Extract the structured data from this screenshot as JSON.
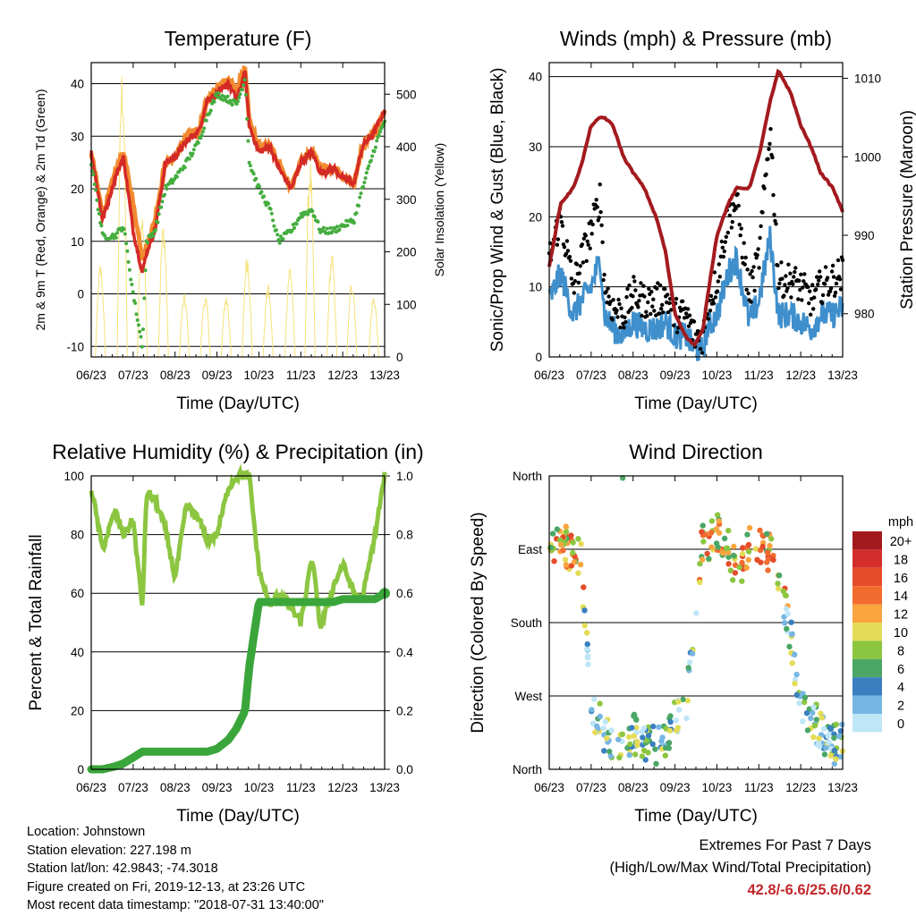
{
  "xticks": [
    "06/23",
    "07/23",
    "08/23",
    "09/23",
    "10/23",
    "11/23",
    "12/23",
    "13/23"
  ],
  "panels": {
    "temperature": {
      "title": "Temperature (F)",
      "xlabel": "Time (Day/UTC)",
      "ylabel_left": "2m & 9m T (Red, Orange) & 2m Td (Green)",
      "ylabel_right": "Solar Insolation (Yellow)",
      "yticks_left": [
        "-10",
        "0",
        "10",
        "20",
        "30",
        "40"
      ],
      "yticks_right": [
        "0",
        "100",
        "200",
        "300",
        "400",
        "500"
      ]
    },
    "winds": {
      "title": "Winds (mph) & Pressure (mb)",
      "xlabel": "Time (Day/UTC)",
      "ylabel_left": "Sonic/Prop Wind & Gust (Blue, Black)",
      "ylabel_right": "Station Pressure (Maroon)",
      "yticks_left": [
        "0",
        "10",
        "20",
        "30",
        "40"
      ],
      "yticks_right": [
        "980",
        "990",
        "1000",
        "1010"
      ]
    },
    "humidity": {
      "title": "Relative Humidity (%) & Precipitation (in)",
      "xlabel": "Time (Day/UTC)",
      "ylabel_left": "Percent & Total Rainfall",
      "yticks_left": [
        "0",
        "20",
        "40",
        "60",
        "80",
        "100"
      ],
      "yticks_right": [
        "0.0",
        "0.2",
        "0.4",
        "0.6",
        "0.8",
        "1.0"
      ]
    },
    "direction": {
      "title": "Wind Direction",
      "xlabel": "Time (Day/UTC)",
      "ylabel_left": "Direction (Colored By Speed)",
      "yticks_left": [
        "North",
        "East",
        "South",
        "West",
        "North"
      ],
      "legend_title": "mph",
      "legend_labels": [
        "20+",
        "18",
        "16",
        "14",
        "12",
        "10",
        "8",
        "6",
        "4",
        "2",
        "0"
      ],
      "legend_colors": [
        "#a31a1e",
        "#d32e2b",
        "#e54c2a",
        "#f26b2f",
        "#f9a43f",
        "#e4dc57",
        "#8cc641",
        "#4aa766",
        "#3a7fc0",
        "#77b6e3",
        "#bfe6f7"
      ]
    }
  },
  "info": {
    "location": "Location: Johnstown",
    "elevation": "Station elevation: 227.198 m",
    "latlon": "Station lat/lon: 42.9843; -74.3018",
    "created": "Figure created on Fri, 2019-12-13, at 23:26 UTC",
    "recent": "Most recent data timestamp: \"2018-07-31 13:40:00\""
  },
  "extremes": {
    "line1": "Extremes For Past 7 Days",
    "line2": "(High/Low/Max Wind/Total Precipitation)",
    "values": "42.8/-6.6/25.6/0.62"
  },
  "chart_data": [
    {
      "type": "line",
      "title": "Temperature (F)",
      "xlabel": "Time (Day/UTC)",
      "ylabel": "2m & 9m T (Red, Orange) & 2m Td (Green)",
      "y2label": "Solar Insolation (Yellow)",
      "ylim": [
        -12,
        44
      ],
      "y2lim": [
        0,
        560
      ],
      "x": [
        6.23,
        6.5,
        6.8,
        7.0,
        7.23,
        7.45,
        7.55,
        7.75,
        8.0,
        8.23,
        8.5,
        8.8,
        9.0,
        9.23,
        9.5,
        9.7,
        9.9,
        10.0,
        10.23,
        10.5,
        10.7,
        11.0,
        11.23,
        11.5,
        11.7,
        12.0,
        12.23,
        12.5,
        12.7,
        13.0,
        13.23
      ],
      "series": [
        {
          "name": "2m T (Red)",
          "color": "#d42a26",
          "values": [
            27,
            14,
            22,
            26,
            12,
            4,
            8,
            12,
            25,
            26,
            29,
            31,
            37,
            38,
            40,
            37,
            42,
            32,
            27,
            28,
            24,
            20,
            25,
            27,
            23,
            24,
            22,
            21,
            28,
            31,
            35
          ]
        },
        {
          "name": "9m T (Orange)",
          "color": "#f28a2e",
          "values": [
            27,
            15,
            23,
            27,
            17,
            7,
            9,
            14,
            25,
            26,
            30,
            31,
            37,
            39,
            41,
            39,
            43,
            33,
            28,
            28,
            25,
            20,
            25,
            27,
            24,
            24,
            22,
            21,
            28,
            31,
            35
          ]
        },
        {
          "name": "2m Td (Green)",
          "color": "#45ad3f",
          "values": [
            25,
            11,
            11,
            13,
            0,
            -10,
            10,
            12,
            20,
            22,
            25,
            29,
            34,
            38,
            37,
            36,
            41,
            25,
            20,
            16,
            10,
            12,
            15,
            16,
            12,
            12,
            13,
            14,
            20,
            28,
            33
          ]
        },
        {
          "name": "Solar Insolation (Yellow)",
          "axis": "right",
          "color": "#f7e27a",
          "values": [
            0,
            0,
            0,
            0,
            0,
            0,
            0,
            0,
            0,
            0,
            0,
            0,
            0,
            0,
            0,
            0,
            0,
            0,
            0,
            0,
            0,
            0,
            0,
            0,
            0,
            0,
            0,
            0,
            0,
            0,
            0
          ],
          "peaks": [
            [
              6.45,
              180
            ],
            [
              6.97,
              560
            ],
            [
              7.45,
              280
            ],
            [
              7.95,
              260
            ],
            [
              8.45,
              120
            ],
            [
              8.95,
              120
            ],
            [
              9.45,
              120
            ],
            [
              9.95,
              200
            ],
            [
              10.45,
              140
            ],
            [
              10.97,
              180
            ],
            [
              11.45,
              380
            ],
            [
              11.97,
              200
            ],
            [
              12.45,
              150
            ],
            [
              12.97,
              120
            ]
          ]
        }
      ]
    },
    {
      "type": "line",
      "title": "Winds (mph) & Pressure (mb)",
      "xlabel": "Time (Day/UTC)",
      "ylabel": "Sonic/Prop Wind & Gust (Blue, Black)",
      "y2label": "Station Pressure (Maroon)",
      "ylim": [
        0,
        42
      ],
      "y2lim": [
        974.5,
        1012
      ],
      "x": [
        6.23,
        6.5,
        6.8,
        7.0,
        7.23,
        7.45,
        7.55,
        7.75,
        8.0,
        8.23,
        8.5,
        8.8,
        9.0,
        9.23,
        9.5,
        9.7,
        9.9,
        10.0,
        10.23,
        10.5,
        10.7,
        11.0,
        11.23,
        11.5,
        11.7,
        12.0,
        12.23,
        12.5,
        12.7,
        13.0,
        13.23
      ],
      "series": [
        {
          "name": "Wind (Blue)",
          "color": "#3f8fcc",
          "values": [
            8,
            12,
            6,
            8,
            10,
            14,
            6,
            4,
            3,
            5,
            4,
            4,
            5,
            3,
            3,
            1,
            1,
            4,
            6,
            12,
            14,
            5,
            8,
            17,
            6,
            6,
            5,
            4,
            6,
            6,
            7
          ]
        },
        {
          "name": "Gust (Black)",
          "color": "#000000",
          "values": [
            14,
            20,
            10,
            14,
            18,
            23,
            10,
            7,
            6,
            9,
            8,
            8,
            9,
            6,
            6,
            3,
            3,
            7,
            11,
            20,
            22,
            9,
            14,
            33,
            11,
            11,
            10,
            8,
            10,
            11,
            12
          ]
        },
        {
          "name": "Station Pressure (Maroon)",
          "axis": "right",
          "color": "#a31a1e",
          "values": [
            986,
            994,
            996,
            999,
            1004,
            1005,
            1005,
            1004,
            1000,
            998,
            996,
            992,
            988,
            980,
            977,
            976,
            978,
            982,
            990,
            994,
            996,
            996,
            1000,
            1007,
            1011,
            1008,
            1004,
            1001,
            998,
            996,
            993
          ]
        }
      ]
    },
    {
      "type": "line",
      "title": "Relative Humidity (%) & Precipitation (in)",
      "xlabel": "Time (Day/UTC)",
      "ylabel": "Percent & Total Rainfall",
      "ylim": [
        0,
        100
      ],
      "y2lim": [
        0,
        1.0
      ],
      "x": [
        6.23,
        6.5,
        6.8,
        7.0,
        7.23,
        7.45,
        7.55,
        7.75,
        8.0,
        8.23,
        8.5,
        8.8,
        9.0,
        9.23,
        9.5,
        9.7,
        9.9,
        10.0,
        10.23,
        10.5,
        10.7,
        11.0,
        11.23,
        11.5,
        11.7,
        12.0,
        12.23,
        12.5,
        12.7,
        13.0,
        13.23
      ],
      "series": [
        {
          "name": "Relative Humidity",
          "color": "#8cc641",
          "values": [
            96,
            75,
            88,
            80,
            85,
            55,
            94,
            92,
            82,
            65,
            90,
            85,
            78,
            80,
            96,
            100,
            100,
            100,
            68,
            55,
            60,
            55,
            50,
            72,
            48,
            62,
            70,
            60,
            58,
            80,
            100
          ]
        },
        {
          "name": "Total Rainfall",
          "axis": "right",
          "color": "#3aa53a",
          "values": [
            0,
            0,
            0.01,
            0.02,
            0.04,
            0.06,
            0.06,
            0.06,
            0.06,
            0.06,
            0.06,
            0.06,
            0.06,
            0.07,
            0.1,
            0.14,
            0.2,
            0.35,
            0.57,
            0.57,
            0.57,
            0.57,
            0.57,
            0.57,
            0.57,
            0.57,
            0.58,
            0.58,
            0.58,
            0.58,
            0.6
          ]
        }
      ]
    },
    {
      "type": "scatter",
      "title": "Wind Direction",
      "xlabel": "Time (Day/UTC)",
      "ylabel": "Direction (Colored By Speed)",
      "ylim": [
        0,
        360
      ],
      "colorbar": {
        "title": "mph",
        "range": [
          0,
          20
        ]
      },
      "x": [
        6.23,
        6.5,
        6.8,
        7.0,
        7.23,
        7.45,
        7.55,
        7.75,
        8.0,
        8.23,
        8.5,
        8.8,
        9.0,
        9.23,
        9.5,
        9.7,
        9.9,
        10.0,
        10.23,
        10.5,
        10.7,
        11.0,
        11.23,
        11.5,
        11.7,
        12.0,
        12.23,
        12.5,
        12.7,
        13.0,
        13.23
      ],
      "series": [
        {
          "name": "Direction",
          "values": [
            270,
            280,
            265,
            255,
            60,
            70,
            40,
            30,
            20,
            45,
            35,
            30,
            40,
            60,
            80,
            160,
            290,
            280,
            290,
            270,
            240,
            275,
            270,
            265,
            240,
            160,
            70,
            60,
            50,
            30,
            40
          ]
        }
      ]
    }
  ]
}
